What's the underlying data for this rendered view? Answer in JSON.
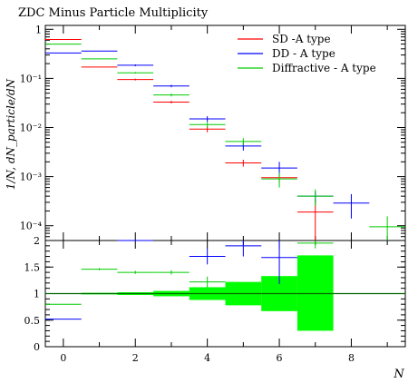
{
  "chart_data": [
    {
      "type": "line",
      "title": "ZDC Minus Particle Multiplicity",
      "ylabel": "1/N, dN_particle/dN",
      "yscale": "log",
      "ylim": [
        5e-05,
        1.2
      ],
      "xlim": [
        -0.5,
        9.5
      ],
      "y_tick_labels": [
        "1",
        "10⁻¹",
        "10⁻²",
        "10⁻³",
        "10⁻⁴"
      ],
      "legend_position": "top-right",
      "series": [
        {
          "name": "SD -A type",
          "color": "#ff0000",
          "points": [
            {
              "x": 0,
              "y": 0.62,
              "err": 0.0
            },
            {
              "x": 1,
              "y": 0.17,
              "err": 0.0
            },
            {
              "x": 2,
              "y": 0.095,
              "err": 0.004
            },
            {
              "x": 3,
              "y": 0.033,
              "err": 0.002
            },
            {
              "x": 4,
              "y": 0.0093,
              "err": 0.0013
            },
            {
              "x": 5,
              "y": 0.0019,
              "err": 0.0003
            },
            {
              "x": 6,
              "y": 0.00095,
              "err": 0.0002
            },
            {
              "x": 7,
              "y": 0.00019,
              "err": 0.00014
            }
          ]
        },
        {
          "name": "DD - A type",
          "color": "#0000ff",
          "points": [
            {
              "x": 0,
              "y": 0.33,
              "err": 0.0
            },
            {
              "x": 1,
              "y": 0.36,
              "err": 0.0
            },
            {
              "x": 2,
              "y": 0.185,
              "err": 0.008
            },
            {
              "x": 3,
              "y": 0.07,
              "err": 0.004
            },
            {
              "x": 4,
              "y": 0.015,
              "err": 0.002
            },
            {
              "x": 5,
              "y": 0.0042,
              "err": 0.0008
            },
            {
              "x": 6,
              "y": 0.0015,
              "err": 0.0005
            },
            {
              "x": 7,
              "y": 0.0004,
              "err": 0.0001
            },
            {
              "x": 8,
              "y": 0.00029,
              "err": 0.00015
            }
          ]
        },
        {
          "name": "Diffractive - A type",
          "color": "#00cc00",
          "points": [
            {
              "x": 0,
              "y": 0.5,
              "err": 0.0
            },
            {
              "x": 1,
              "y": 0.25,
              "err": 0.0
            },
            {
              "x": 2,
              "y": 0.13,
              "err": 0.005
            },
            {
              "x": 3,
              "y": 0.046,
              "err": 0.003
            },
            {
              "x": 4,
              "y": 0.0115,
              "err": 0.0015
            },
            {
              "x": 5,
              "y": 0.0052,
              "err": 0.0009
            },
            {
              "x": 6,
              "y": 0.0009,
              "err": 0.0003
            },
            {
              "x": 7,
              "y": 0.0004,
              "err": 0.00015
            },
            {
              "x": 9,
              "y": 9.5e-05,
              "err": 6e-05
            }
          ]
        }
      ]
    },
    {
      "type": "line",
      "xlabel": "N",
      "ylim": [
        0,
        2
      ],
      "xlim": [
        -0.5,
        9.5
      ],
      "y_ticks": [
        0,
        0.5,
        1,
        1.5,
        2
      ],
      "y_tick_labels": [
        "0",
        "0.5",
        "1",
        "1.5",
        "2"
      ],
      "x_ticks": [
        0,
        2,
        4,
        6,
        8
      ],
      "x_tick_labels": [
        "0",
        "2",
        "4",
        "6",
        "8"
      ],
      "reference_line": 1,
      "band": {
        "color": "#00ff00",
        "bins": [
          {
            "x0": 0.5,
            "x1": 1.5,
            "low": 0.985,
            "high": 1.015
          },
          {
            "x0": 1.5,
            "x1": 2.5,
            "low": 0.975,
            "high": 1.025
          },
          {
            "x0": 2.5,
            "x1": 3.5,
            "low": 0.95,
            "high": 1.05
          },
          {
            "x0": 3.5,
            "x1": 4.5,
            "low": 0.88,
            "high": 1.12
          },
          {
            "x0": 4.5,
            "x1": 5.5,
            "low": 0.78,
            "high": 1.22
          },
          {
            "x0": 5.5,
            "x1": 6.5,
            "low": 0.67,
            "high": 1.33
          },
          {
            "x0": 6.5,
            "x1": 7.5,
            "low": 0.3,
            "high": 1.72
          }
        ]
      },
      "series": [
        {
          "name": "DD - A type",
          "color": "#0000ff",
          "points": [
            {
              "x": 0,
              "y": 0.52,
              "err": 0.0
            },
            {
              "x": 2,
              "y": 2.0,
              "err": 0.0
            },
            {
              "x": 4,
              "y": 1.7,
              "err": 0.15
            },
            {
              "x": 5,
              "y": 1.9,
              "err": 0.2
            },
            {
              "x": 6,
              "y": 1.68,
              "err": 0.5
            }
          ]
        },
        {
          "name": "Diffractive - A type",
          "color": "#00cc00",
          "points": [
            {
              "x": 0,
              "y": 0.8,
              "err": 0.0
            },
            {
              "x": 1,
              "y": 1.46,
              "err": 0.02
            },
            {
              "x": 2,
              "y": 1.4,
              "err": 0.03
            },
            {
              "x": 3,
              "y": 1.4,
              "err": 0.04
            },
            {
              "x": 4,
              "y": 1.22,
              "err": 0.1
            },
            {
              "x": 7,
              "y": 1.95,
              "err": 0.1
            }
          ]
        }
      ]
    }
  ]
}
